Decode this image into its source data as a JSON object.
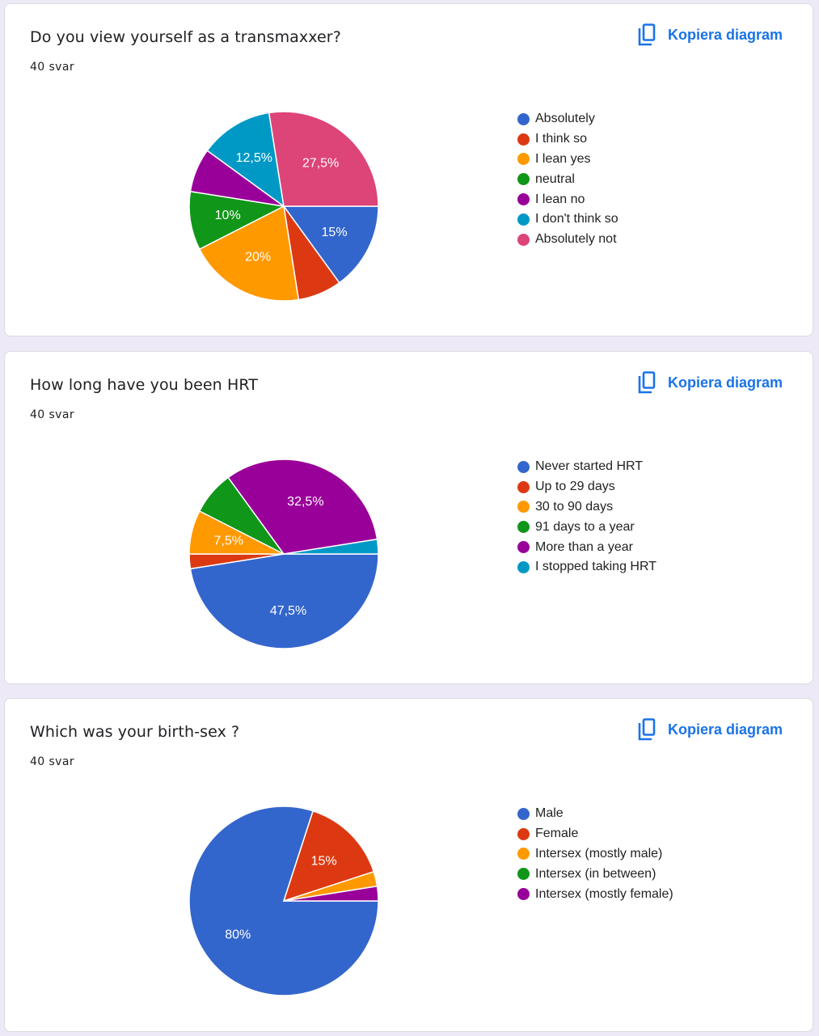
{
  "copy_label": "Kopiera diagram",
  "copy_icon": "copy-icon",
  "colors": [
    "#3366cc",
    "#dc3912",
    "#ff9900",
    "#109618",
    "#990099",
    "#0099c6",
    "#dd4477"
  ],
  "chart_data": [
    {
      "type": "pie",
      "title": "Do you view yourself as a transmaxxer?",
      "count": "40 svar",
      "legend_position": "right",
      "start": "3 o'clock, clockwise",
      "slices": [
        {
          "label": "Absolutely",
          "value": 15,
          "text": "15%",
          "label_visible": true
        },
        {
          "label": "I think so",
          "value": 7.5,
          "text": "7,5%",
          "label_visible": false
        },
        {
          "label": "I lean yes",
          "value": 20,
          "text": "20%",
          "label_visible": true
        },
        {
          "label": "neutral",
          "value": 10,
          "text": "10%",
          "label_visible": true
        },
        {
          "label": "I lean no",
          "value": 7.5,
          "text": "7,5%",
          "label_visible": false
        },
        {
          "label": "I don't think so",
          "value": 12.5,
          "text": "12,5%",
          "label_visible": true
        },
        {
          "label": "Absolutely not",
          "value": 27.5,
          "text": "27,5%",
          "label_visible": true
        }
      ]
    },
    {
      "type": "pie",
      "title": "How long have you been HRT",
      "count": "40 svar",
      "legend_position": "right",
      "start": "3 o'clock, clockwise",
      "slices": [
        {
          "label": "Never started HRT",
          "value": 47.5,
          "text": "47,5%",
          "label_visible": true
        },
        {
          "label": "Up to 29 days",
          "value": 2.5,
          "text": "2,5%",
          "label_visible": false
        },
        {
          "label": "30 to 90 days",
          "value": 7.5,
          "text": "7,5%",
          "label_visible": true
        },
        {
          "label": "91 days to a year",
          "value": 7.5,
          "text": "7,5%",
          "label_visible": false
        },
        {
          "label": "More than a year",
          "value": 32.5,
          "text": "32,5%",
          "label_visible": true
        },
        {
          "label": "I stopped taking HRT",
          "value": 2.5,
          "text": "2,5%",
          "label_visible": false
        }
      ]
    },
    {
      "type": "pie",
      "title": "Which was your birth-sex ?",
      "count": "40 svar",
      "legend_position": "right",
      "start": "3 o'clock, clockwise",
      "slices": [
        {
          "label": "Male",
          "value": 80,
          "text": "80%",
          "label_visible": true
        },
        {
          "label": "Female",
          "value": 15,
          "text": "15%",
          "label_visible": true
        },
        {
          "label": "Intersex (mostly male)",
          "value": 2.5,
          "text": "2,5%",
          "label_visible": false
        },
        {
          "label": "Intersex (in between)",
          "value": 0,
          "text": "0%",
          "label_visible": false
        },
        {
          "label": "Intersex (mostly female)",
          "value": 2.5,
          "text": "2,5%",
          "label_visible": false
        }
      ]
    }
  ]
}
